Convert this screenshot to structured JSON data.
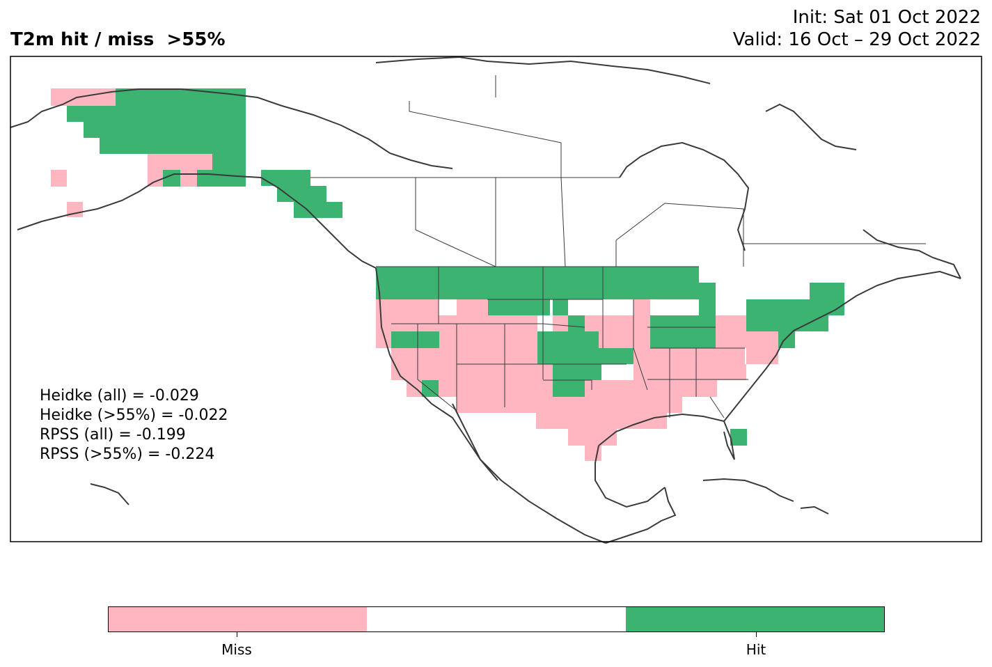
{
  "title": "T2m hit / miss  >55%",
  "init": "Init: Sat 01 Oct 2022",
  "valid": "Valid: 16 Oct – 29 Oct 2022",
  "stats": [
    "Heidke (all) = -0.029",
    "Heidke (>55%) = -0.022",
    "RPSS (all) = -0.199",
    "RPSS (>55%) = -0.224"
  ],
  "legend": {
    "categories": [
      {
        "label": "Miss",
        "color": "#ffb6c1"
      },
      {
        "label": "",
        "color": "#ffffff"
      },
      {
        "label": "Hit",
        "color": "#3cb371"
      }
    ]
  },
  "colors": {
    "miss": "#ffb6c1",
    "hit": "#3cb371",
    "coast": "#3a3a3a"
  }
}
